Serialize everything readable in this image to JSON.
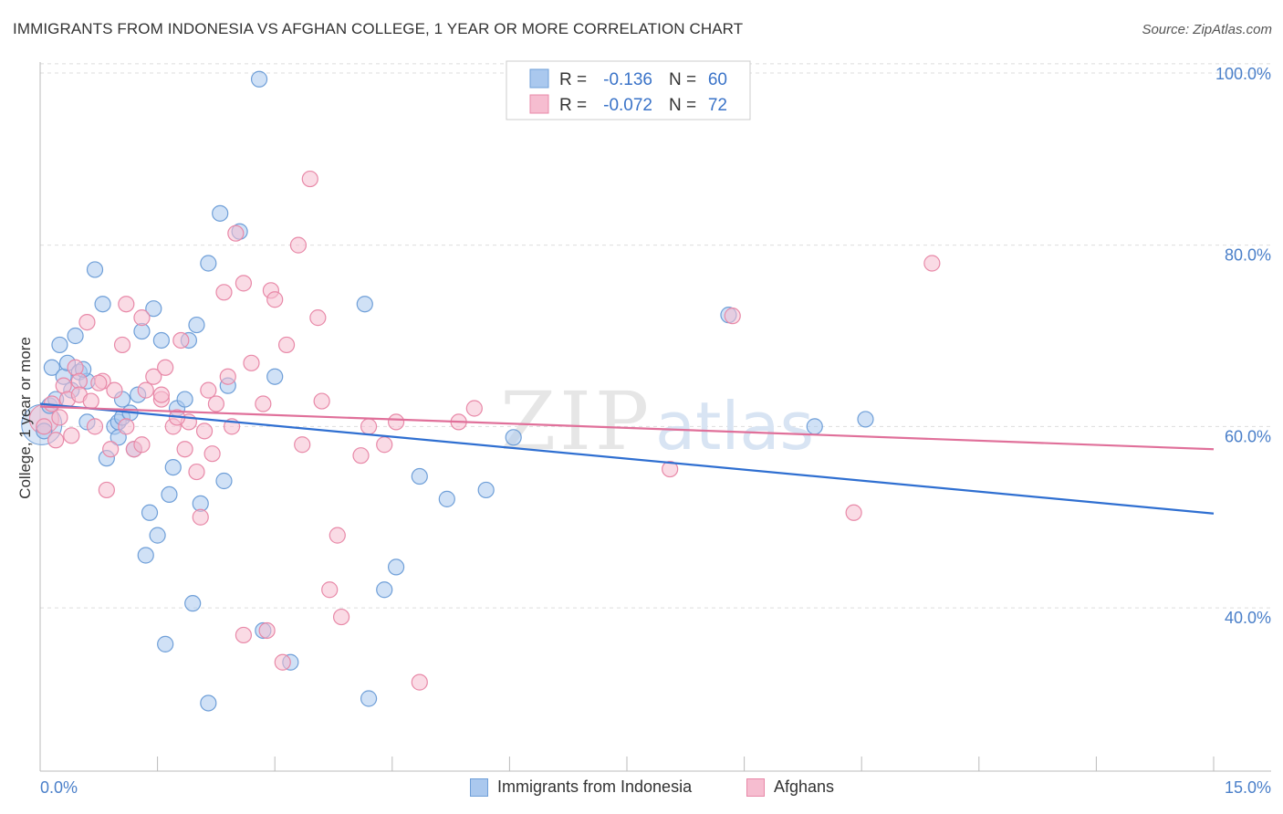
{
  "title": "IMMIGRANTS FROM INDONESIA VS AFGHAN COLLEGE, 1 YEAR OR MORE CORRELATION CHART",
  "source": "Source: ZipAtlas.com",
  "watermark": {
    "zip": "ZIP",
    "atlas": "atlas"
  },
  "colors": {
    "blue_fill": "#aac8ee",
    "blue_stroke": "#6f9fd8",
    "blue_line": "#2f6fd1",
    "pink_fill": "#f6bdd0",
    "pink_stroke": "#e889a8",
    "pink_line": "#e0709a",
    "axis_text": "#4a7fc9",
    "grid": "#dddddd"
  },
  "legend_top": {
    "rows": [
      {
        "r_label": "R =",
        "r_value": "-0.136",
        "n_label": "N =",
        "n_value": "60",
        "series": "blue"
      },
      {
        "r_label": "R =",
        "r_value": "-0.072",
        "n_label": "N =",
        "n_value": "72",
        "series": "pink"
      }
    ]
  },
  "legend_bottom": [
    {
      "label": "Immigrants from Indonesia",
      "series": "blue"
    },
    {
      "label": "Afghans",
      "series": "pink"
    }
  ],
  "chart_data": {
    "type": "scatter",
    "title": "IMMIGRANTS FROM INDONESIA VS AFGHAN COLLEGE, 1 YEAR OR MORE CORRELATION CHART",
    "xlabel": "",
    "ylabel": "College, 1 year or more",
    "xlim": [
      0,
      15
    ],
    "ylim": [
      22,
      102
    ],
    "x_tick_labels": [
      "0.0%",
      "15.0%"
    ],
    "y_ticks": [
      40,
      60,
      80,
      100
    ],
    "y_tick_labels": [
      "40.0%",
      "60.0%",
      "80.0%",
      "100.0%"
    ],
    "grid": true,
    "legend_position": "top-center",
    "series": [
      {
        "name": "Immigrants from Indonesia",
        "color": "blue",
        "trend": {
          "x": [
            0,
            15
          ],
          "y": [
            62.5,
            50.4
          ]
        },
        "points": [
          [
            0.05,
            59.5
          ],
          [
            0.12,
            62.3
          ],
          [
            0.15,
            66.5
          ],
          [
            0.25,
            69.0
          ],
          [
            0.3,
            65.5
          ],
          [
            0.35,
            67.0
          ],
          [
            0.4,
            64.0
          ],
          [
            0.45,
            70.0
          ],
          [
            0.5,
            66.0
          ],
          [
            0.6,
            65.0
          ],
          [
            0.7,
            77.3
          ],
          [
            0.8,
            73.5
          ],
          [
            0.95,
            60.0
          ],
          [
            1.0,
            60.5
          ],
          [
            1.05,
            61.0
          ],
          [
            1.15,
            61.5
          ],
          [
            1.2,
            57.5
          ],
          [
            1.3,
            70.5
          ],
          [
            1.45,
            73.0
          ],
          [
            1.55,
            69.5
          ],
          [
            1.75,
            62.0
          ],
          [
            1.85,
            63.0
          ],
          [
            1.9,
            69.5
          ],
          [
            2.0,
            71.2
          ],
          [
            2.15,
            78.0
          ],
          [
            2.3,
            83.5
          ],
          [
            2.4,
            64.5
          ],
          [
            2.55,
            81.5
          ],
          [
            2.8,
            98.3
          ],
          [
            3.0,
            65.5
          ],
          [
            0.6,
            60.5
          ],
          [
            0.85,
            56.5
          ],
          [
            1.05,
            63.0
          ],
          [
            1.25,
            63.5
          ],
          [
            1.4,
            50.5
          ],
          [
            1.5,
            48.0
          ],
          [
            1.35,
            45.8
          ],
          [
            1.65,
            52.5
          ],
          [
            1.7,
            55.5
          ],
          [
            2.05,
            51.5
          ],
          [
            2.35,
            54.0
          ],
          [
            1.6,
            36.0
          ],
          [
            1.95,
            40.5
          ],
          [
            2.15,
            29.5
          ],
          [
            2.85,
            37.5
          ],
          [
            3.2,
            34.0
          ],
          [
            4.15,
            73.5
          ],
          [
            4.4,
            42.0
          ],
          [
            4.55,
            44.5
          ],
          [
            4.2,
            30.0
          ],
          [
            4.85,
            54.5
          ],
          [
            5.2,
            52.0
          ],
          [
            5.7,
            53.0
          ],
          [
            6.05,
            58.8
          ],
          [
            8.8,
            72.3
          ],
          [
            9.9,
            60.0
          ],
          [
            10.55,
            60.8
          ],
          [
            0.2,
            63.0
          ],
          [
            0.55,
            66.3
          ],
          [
            1.0,
            58.8
          ]
        ]
      },
      {
        "name": "Afghans",
        "color": "pink",
        "trend": {
          "x": [
            0,
            15
          ],
          "y": [
            62.2,
            57.5
          ]
        },
        "points": [
          [
            0.05,
            60.0
          ],
          [
            0.15,
            62.5
          ],
          [
            0.2,
            58.5
          ],
          [
            0.3,
            64.5
          ],
          [
            0.35,
            63.0
          ],
          [
            0.45,
            66.5
          ],
          [
            0.5,
            65.0
          ],
          [
            0.6,
            71.5
          ],
          [
            0.7,
            60.0
          ],
          [
            0.8,
            65.0
          ],
          [
            0.85,
            53.0
          ],
          [
            0.95,
            64.0
          ],
          [
            1.05,
            69.0
          ],
          [
            1.1,
            73.5
          ],
          [
            1.2,
            57.5
          ],
          [
            1.3,
            72.0
          ],
          [
            1.35,
            64.0
          ],
          [
            1.45,
            65.5
          ],
          [
            1.6,
            66.5
          ],
          [
            1.55,
            63.0
          ],
          [
            1.7,
            60.0
          ],
          [
            1.8,
            69.5
          ],
          [
            1.85,
            57.5
          ],
          [
            1.9,
            60.5
          ],
          [
            2.0,
            55.0
          ],
          [
            2.1,
            59.5
          ],
          [
            2.15,
            64.0
          ],
          [
            2.25,
            62.5
          ],
          [
            2.35,
            74.8
          ],
          [
            2.45,
            60.0
          ],
          [
            2.5,
            81.3
          ],
          [
            2.6,
            75.8
          ],
          [
            2.7,
            67.0
          ],
          [
            2.85,
            62.5
          ],
          [
            2.95,
            75.0
          ],
          [
            3.0,
            74.0
          ],
          [
            3.15,
            69.0
          ],
          [
            3.3,
            80.0
          ],
          [
            3.35,
            58.0
          ],
          [
            3.45,
            87.3
          ],
          [
            3.55,
            72.0
          ],
          [
            3.6,
            62.8
          ],
          [
            3.7,
            42.0
          ],
          [
            3.8,
            48.0
          ],
          [
            3.85,
            39.0
          ],
          [
            4.1,
            56.8
          ],
          [
            4.2,
            60.0
          ],
          [
            4.4,
            58.0
          ],
          [
            4.55,
            60.5
          ],
          [
            4.85,
            31.8
          ],
          [
            5.35,
            60.5
          ],
          [
            5.55,
            62.0
          ],
          [
            8.05,
            55.3
          ],
          [
            8.85,
            72.2
          ],
          [
            10.4,
            50.5
          ],
          [
            11.4,
            78.0
          ],
          [
            0.4,
            59.0
          ],
          [
            0.5,
            63.5
          ],
          [
            0.9,
            57.5
          ],
          [
            1.1,
            60.0
          ],
          [
            1.3,
            58.0
          ],
          [
            1.55,
            63.5
          ],
          [
            1.75,
            61.0
          ],
          [
            2.05,
            50.0
          ],
          [
            2.2,
            57.0
          ],
          [
            2.4,
            65.5
          ],
          [
            2.6,
            37.0
          ],
          [
            2.9,
            37.5
          ],
          [
            3.1,
            34.0
          ],
          [
            0.25,
            61.0
          ],
          [
            0.65,
            62.8
          ],
          [
            0.75,
            64.8
          ]
        ]
      }
    ]
  }
}
